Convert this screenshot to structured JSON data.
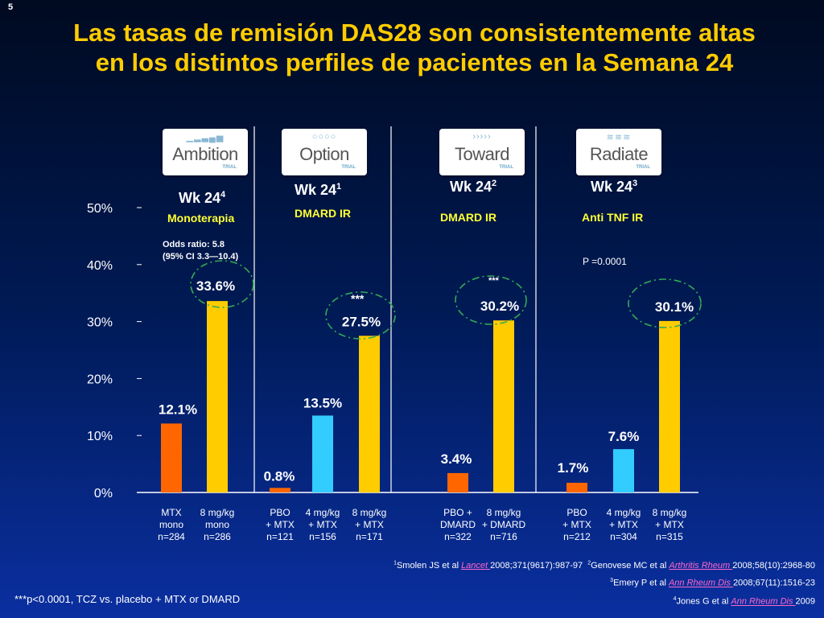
{
  "slide_number": "5",
  "title": {
    "line1": "Las tasas de remisión DAS28 son consistentemente altas",
    "line2": "en los distintos perfiles de pacientes en la Semana 24"
  },
  "logos": [
    {
      "name": "Ambition",
      "sub": "TRIAL"
    },
    {
      "name": "Option",
      "sub": "TRIAL"
    },
    {
      "name": "Toward",
      "sub": "TRIAL"
    },
    {
      "name": "Radiate",
      "sub": "TRIAL"
    }
  ],
  "groups": [
    {
      "week": "Wk 24",
      "sup": "4",
      "label": "Monoterapia"
    },
    {
      "week": "Wk 24",
      "sup": "1",
      "label": "DMARD  IR"
    },
    {
      "week": "Wk 24",
      "sup": "2",
      "label": "DMARD  IR"
    },
    {
      "week": "Wk 24",
      "sup": "3",
      "label": "Anti TNF IR"
    }
  ],
  "annotations": {
    "odds_line1": "Odds ratio: 5.8",
    "odds_line2": "(95% CI 3.3—10.4)",
    "p_value": "P =0.0001",
    "sig_option": "***",
    "sig_toward": "***"
  },
  "chart_data": {
    "type": "bar",
    "ylim": [
      0,
      50
    ],
    "y_ticks": [
      "0%",
      "10%",
      "20%",
      "30%",
      "40%",
      "50%"
    ],
    "bars": [
      {
        "group": 0,
        "category": "MTX\nmono\nn=284",
        "value": 12.1,
        "label": "12.1%",
        "color": "#ff6600"
      },
      {
        "group": 0,
        "category": "8 mg/kg\nmono\nn=286",
        "value": 33.6,
        "label": "33.6%",
        "color": "#ffcc00"
      },
      {
        "group": 1,
        "category": "PBO\n+ MTX\nn=121",
        "value": 0.8,
        "label": "0.8%",
        "color": "#ff6600"
      },
      {
        "group": 1,
        "category": "4 mg/kg\n+ MTX\nn=156",
        "value": 13.5,
        "label": "13.5%",
        "color": "#33ccff"
      },
      {
        "group": 1,
        "category": "8 mg/kg\n+ MTX\nn=171",
        "value": 27.5,
        "label": "27.5%",
        "color": "#ffcc00"
      },
      {
        "group": 2,
        "category": "PBO +\nDMARD\nn=322",
        "value": 3.4,
        "label": "3.4%",
        "color": "#ff6600"
      },
      {
        "group": 2,
        "category": "8 mg/kg\n+ DMARD\nn=716",
        "value": 30.2,
        "label": "30.2%",
        "color": "#ffcc00"
      },
      {
        "group": 3,
        "category": "PBO\n+ MTX\nn=212",
        "value": 1.7,
        "label": "1.7%",
        "color": "#ff6600"
      },
      {
        "group": 3,
        "category": "4 mg/kg\n+ MTX\nn=304",
        "value": 7.6,
        "label": "7.6%",
        "color": "#33ccff"
      },
      {
        "group": 3,
        "category": "8 mg/kg\n+ MTX\nn=315",
        "value": 30.1,
        "label": "30.1%",
        "color": "#ffcc00"
      }
    ]
  },
  "references": {
    "r1": {
      "sup": "1",
      "pre": "Smolen JS et al ",
      "journal": "Lancet ",
      "post": "2008;371(9617):987-97"
    },
    "r2": {
      "sup": "2",
      "pre": "Genovese MC et al ",
      "journal": "Arthritis Rheum ",
      "post": "2008;58(10):2968-80"
    },
    "r3": {
      "sup": "3",
      "pre": "Emery P et al ",
      "journal": "Ann Rheum Dis ",
      "post": "2008;67(11):1516-23"
    },
    "r4": {
      "sup": "4",
      "pre": "Jones G et al ",
      "journal": "Ann Rheum Dis ",
      "post": "2009"
    }
  },
  "footnote": "***p<0.0001, TCZ vs. placebo + MTX or DMARD"
}
